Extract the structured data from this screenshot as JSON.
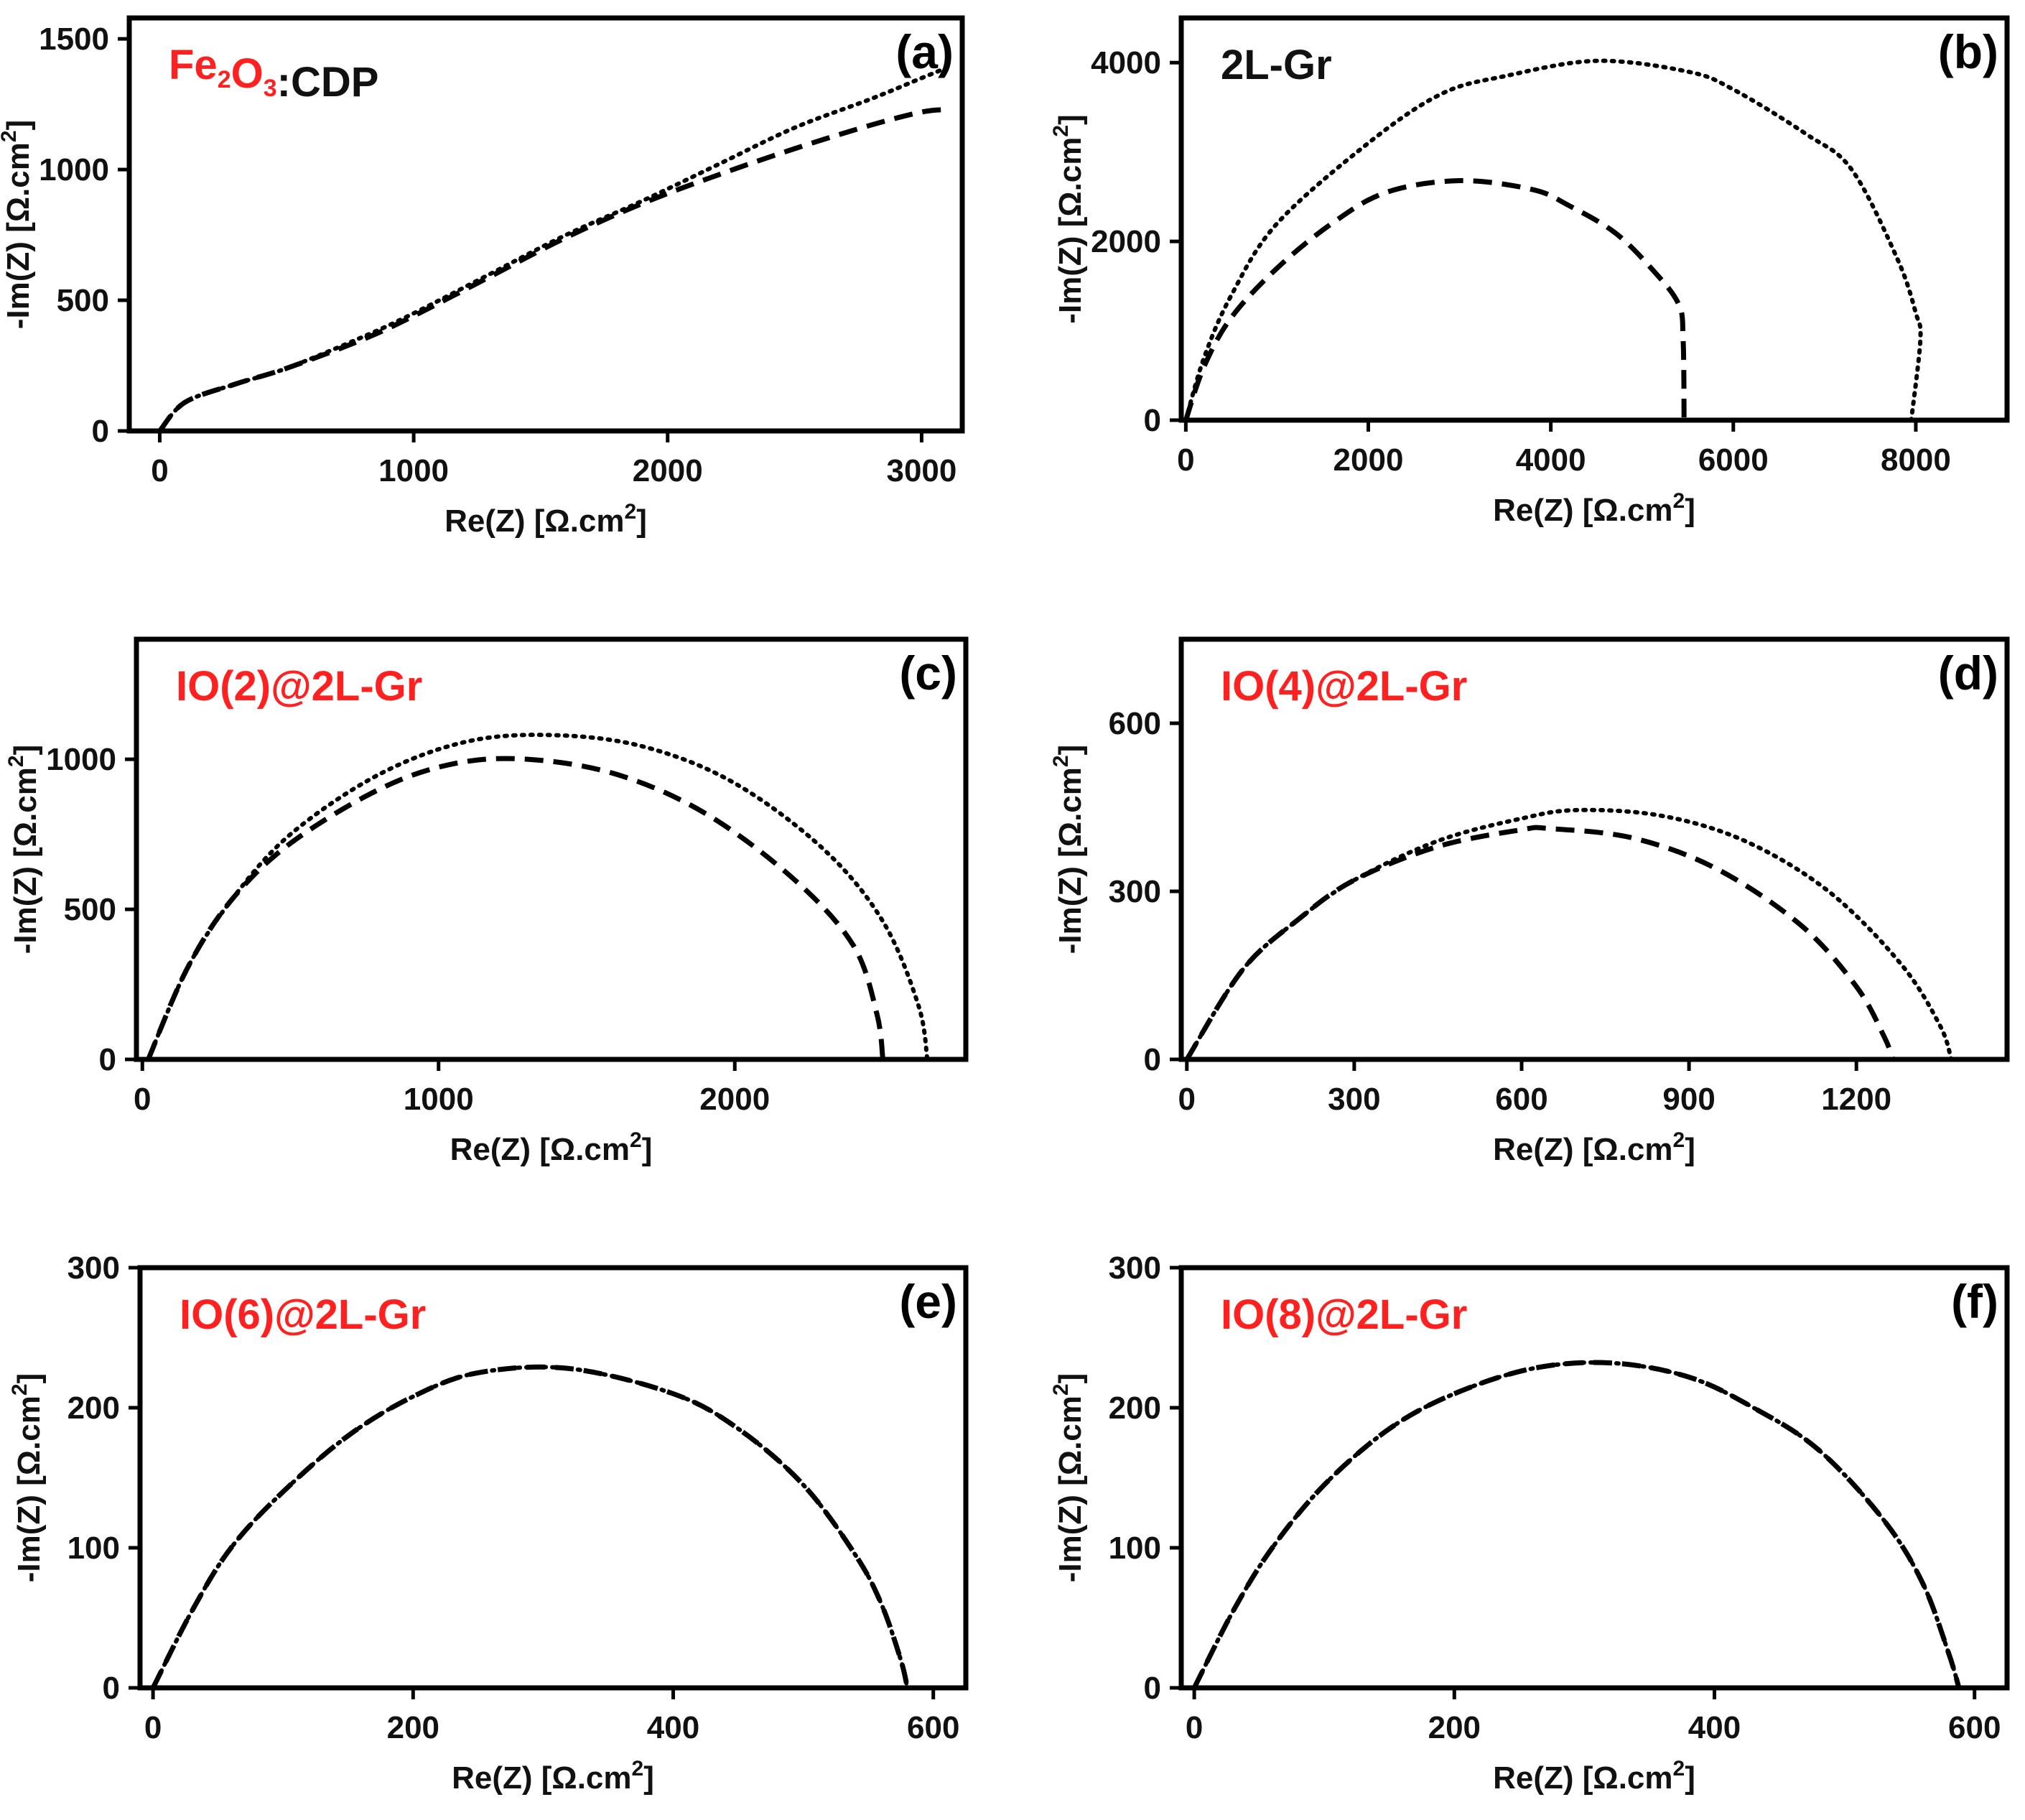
{
  "figure": {
    "series_styles": {
      "dotted": "dotted black curve",
      "dashed": "dashed black curve"
    }
  },
  "colors": {
    "axis": "#000000",
    "text": "#111111",
    "sample_red": "#ff2020"
  },
  "chart_data": [
    {
      "panel": "(a)",
      "type": "line",
      "sample_label": [
        {
          "text": "Fe",
          "color": "#ff2020"
        },
        {
          "text": "2",
          "color": "#ff2020",
          "sub": true
        },
        {
          "text": "O",
          "color": "#ff2020"
        },
        {
          "text": "3",
          "color": "#ff2020",
          "sub": true
        },
        {
          "text": ":CDP",
          "color": "#111111"
        }
      ],
      "xlabel": {
        "main": "Re(Z) [Ω.cm",
        "sup": "2",
        "end": "]"
      },
      "ylabel": {
        "main": "-Im(Z) [Ω.cm",
        "sup": "2",
        "end": "]"
      },
      "xlim": [
        -120,
        3160
      ],
      "ylim": [
        0,
        1580
      ],
      "xticks": [
        0,
        1000,
        2000,
        3000
      ],
      "yticks": [
        0,
        500,
        1000,
        1500
      ],
      "series": [
        {
          "name": "dotted",
          "x": [
            0,
            100,
            300,
            500,
            800,
            1000,
            1300,
            1600,
            1900,
            2200,
            2500,
            2800,
            3000,
            3100
          ],
          "y": [
            0,
            110,
            180,
            240,
            360,
            450,
            600,
            750,
            880,
            1020,
            1160,
            1270,
            1350,
            1390
          ]
        },
        {
          "name": "dashed",
          "x": [
            0,
            100,
            300,
            500,
            800,
            1000,
            1300,
            1600,
            1900,
            2200,
            2500,
            2800,
            3000,
            3100
          ],
          "y": [
            0,
            110,
            180,
            240,
            350,
            440,
            590,
            740,
            870,
            980,
            1080,
            1170,
            1220,
            1230
          ]
        }
      ]
    },
    {
      "panel": "(b)",
      "type": "line",
      "sample_label": [
        {
          "text": "2L-Gr",
          "color": "#111111"
        }
      ],
      "xlabel": {
        "main": "Re(Z) [Ω.cm",
        "sup": "2",
        "end": "]"
      },
      "ylabel": {
        "main": "-Im(Z) [Ω.cm",
        "sup": "2",
        "end": "]"
      },
      "xlim": [
        -50,
        9000
      ],
      "ylim": [
        0,
        4500
      ],
      "xticks": [
        0,
        2000,
        4000,
        6000,
        8000
      ],
      "yticks": [
        0,
        2000,
        4000
      ],
      "series": [
        {
          "name": "dotted",
          "x": [
            0,
            200,
            500,
            1000,
            2000,
            2800,
            3500,
            4500,
            5500,
            6000,
            6800,
            7300,
            7800,
            8000,
            8050,
            7950
          ],
          "y": [
            0,
            700,
            1400,
            2200,
            3100,
            3650,
            3850,
            4020,
            3900,
            3700,
            3200,
            2800,
            1800,
            1200,
            900,
            0
          ]
        },
        {
          "name": "dashed",
          "x": [
            0,
            200,
            500,
            1000,
            1600,
            2200,
            3000,
            3800,
            4200,
            4700,
            5100,
            5400,
            5450,
            5460
          ],
          "y": [
            0,
            600,
            1150,
            1700,
            2200,
            2550,
            2680,
            2580,
            2400,
            2100,
            1700,
            1300,
            900,
            0
          ]
        }
      ]
    },
    {
      "panel": "(c)",
      "type": "line",
      "sample_label": [
        {
          "text": "IO(2)@2L-Gr",
          "color": "#ff2020"
        }
      ],
      "xlabel": {
        "main": "Re(Z) [Ω.cm",
        "sup": "2",
        "end": "]"
      },
      "ylabel": {
        "main": "-Im(Z) [Ω.cm",
        "sup": "2",
        "end": "]"
      },
      "xlim": [
        -20,
        2780
      ],
      "ylim": [
        0,
        1400
      ],
      "xticks": [
        0,
        1000,
        2000
      ],
      "yticks": [
        0,
        500,
        1000
      ],
      "series": [
        {
          "name": "dotted",
          "x": [
            20,
            150,
            300,
            500,
            800,
            1100,
            1400,
            1700,
            2000,
            2300,
            2500,
            2620,
            2650
          ],
          "y": [
            0,
            300,
            530,
            750,
            950,
            1060,
            1080,
            1040,
            920,
            700,
            460,
            180,
            0
          ]
        },
        {
          "name": "dashed",
          "x": [
            20,
            150,
            300,
            500,
            800,
            1050,
            1300,
            1600,
            1900,
            2200,
            2400,
            2480,
            2500
          ],
          "y": [
            0,
            300,
            530,
            720,
            900,
            985,
            1000,
            950,
            820,
            600,
            380,
            150,
            0
          ]
        }
      ]
    },
    {
      "panel": "(d)",
      "type": "line",
      "sample_label": [
        {
          "text": "IO(4)@2L-Gr",
          "color": "#ff2020"
        }
      ],
      "xlabel": {
        "main": "Re(Z) [Ω.cm",
        "sup": "2",
        "end": "]"
      },
      "ylabel": {
        "main": "-Im(Z) [Ω.cm",
        "sup": "2",
        "end": "]"
      },
      "xlim": [
        -10,
        1470
      ],
      "ylim": [
        0,
        750
      ],
      "xticks": [
        0,
        300,
        600,
        900,
        1200
      ],
      "yticks": [
        0,
        300,
        600
      ],
      "series": [
        {
          "name": "dotted",
          "x": [
            0,
            100,
            200,
            300,
            450,
            600,
            700,
            850,
            1000,
            1150,
            1280,
            1350,
            1370
          ],
          "y": [
            0,
            160,
            250,
            320,
            390,
            430,
            445,
            435,
            390,
            300,
            170,
            60,
            0
          ]
        },
        {
          "name": "dashed",
          "x": [
            0,
            100,
            200,
            300,
            450,
            600,
            650,
            800,
            950,
            1100,
            1200,
            1250,
            1265
          ],
          "y": [
            0,
            160,
            250,
            320,
            380,
            410,
            412,
            395,
            340,
            240,
            130,
            40,
            0
          ]
        }
      ]
    },
    {
      "panel": "(e)",
      "type": "line",
      "sample_label": [
        {
          "text": "IO(6)@2L-Gr",
          "color": "#ff2020"
        }
      ],
      "xlabel": {
        "main": "Re(Z) [Ω.cm",
        "sup": "2",
        "end": "]"
      },
      "ylabel": {
        "main": "-Im(Z) [Ω.cm",
        "sup": "2",
        "end": "]"
      },
      "xlim": [
        -10,
        625
      ],
      "ylim": [
        0,
        300
      ],
      "xticks": [
        0,
        200,
        400,
        600
      ],
      "yticks": [
        0,
        100,
        200,
        300
      ],
      "series": [
        {
          "name": "dotted",
          "x": [
            0,
            30,
            60,
            100,
            150,
            200,
            250,
            320,
            400,
            450,
            500,
            540,
            560,
            575,
            580
          ],
          "y": [
            0,
            55,
            100,
            140,
            180,
            208,
            225,
            228,
            210,
            185,
            145,
            95,
            60,
            20,
            0
          ]
        },
        {
          "name": "dashed",
          "x": [
            0,
            30,
            60,
            100,
            150,
            200,
            250,
            320,
            400,
            450,
            500,
            540,
            560,
            575,
            580
          ],
          "y": [
            0,
            55,
            100,
            140,
            180,
            208,
            225,
            228,
            210,
            185,
            145,
            95,
            60,
            20,
            0
          ]
        }
      ]
    },
    {
      "panel": "(f)",
      "type": "line",
      "sample_label": [
        {
          "text": "IO(8)@2L-Gr",
          "color": "#ff2020"
        }
      ],
      "xlabel": {
        "main": "Re(Z) [Ω.cm",
        "sup": "2",
        "end": "]"
      },
      "ylabel": {
        "main": "-Im(Z) [Ω.cm",
        "sup": "2",
        "end": "]"
      },
      "xlim": [
        -10,
        625
      ],
      "ylim": [
        0,
        300
      ],
      "xticks": [
        0,
        200,
        400,
        600
      ],
      "yticks": [
        0,
        100,
        200,
        300
      ],
      "series": [
        {
          "name": "dotted",
          "x": [
            0,
            30,
            60,
            100,
            150,
            200,
            260,
            320,
            380,
            430,
            480,
            530,
            560,
            580,
            588
          ],
          "y": [
            0,
            55,
            100,
            145,
            185,
            210,
            228,
            232,
            222,
            200,
            170,
            120,
            75,
            25,
            0
          ]
        },
        {
          "name": "dashed",
          "x": [
            0,
            30,
            60,
            100,
            150,
            200,
            260,
            320,
            380,
            430,
            480,
            530,
            560,
            580,
            588
          ],
          "y": [
            0,
            55,
            100,
            145,
            185,
            210,
            228,
            232,
            222,
            200,
            170,
            120,
            75,
            25,
            0
          ]
        }
      ]
    }
  ]
}
